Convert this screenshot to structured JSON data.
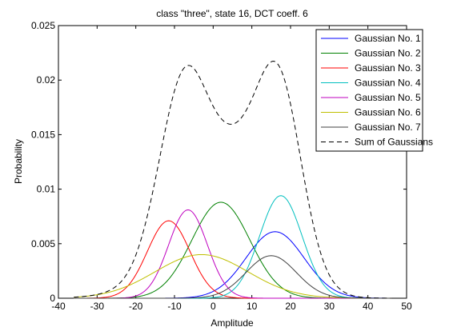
{
  "chart_data": {
    "type": "line",
    "title": "class \"three\", state 16, DCT coeff. 6",
    "xlabel": "Amplitude",
    "ylabel": "Probability",
    "xlim": [
      -40,
      50
    ],
    "ylim": [
      0,
      0.025
    ],
    "xticks": [
      -40,
      -30,
      -20,
      -10,
      0,
      10,
      20,
      30,
      40,
      50
    ],
    "yticks": [
      0,
      0.005,
      0.01,
      0.015,
      0.02,
      0.025
    ],
    "xtick_labels": [
      "-40",
      "-30",
      "-20",
      "-10",
      "0",
      "10",
      "20",
      "30",
      "40",
      "50"
    ],
    "ytick_labels": [
      "0",
      "0.005",
      "0.01",
      "0.015",
      "0.02",
      "0.025"
    ],
    "x_domain": [
      -36,
      46
    ],
    "grid": false,
    "legend": "top-right",
    "series": [
      {
        "name": "Gaussian No. 1",
        "color": "#0000ff",
        "style": "solid",
        "peak_x": 16,
        "peak_y": 0.0061,
        "sigma": 7.5
      },
      {
        "name": "Gaussian No. 2",
        "color": "#008000",
        "style": "solid",
        "peak_x": 2,
        "peak_y": 0.0088,
        "sigma": 7.5
      },
      {
        "name": "Gaussian No. 3",
        "color": "#ff0000",
        "style": "solid",
        "peak_x": -11.5,
        "peak_y": 0.0071,
        "sigma": 5.5
      },
      {
        "name": "Gaussian No. 4",
        "color": "#00bfbf",
        "style": "solid",
        "peak_x": 17.5,
        "peak_y": 0.0094,
        "sigma": 5.5
      },
      {
        "name": "Gaussian No. 5",
        "color": "#bf00bf",
        "style": "solid",
        "peak_x": -6.5,
        "peak_y": 0.0081,
        "sigma": 5.0
      },
      {
        "name": "Gaussian No. 6",
        "color": "#bfbf00",
        "style": "solid",
        "peak_x": -3,
        "peak_y": 0.004,
        "sigma": 12.0
      },
      {
        "name": "Gaussian No. 7",
        "color": "#404040",
        "style": "solid",
        "peak_x": 15,
        "peak_y": 0.0039,
        "sigma": 6.5
      },
      {
        "name": "Sum of Gaussians",
        "color": "#000000",
        "style": "dashed",
        "sum_of": [
          0,
          1,
          2,
          3,
          4,
          5,
          6
        ]
      }
    ]
  }
}
